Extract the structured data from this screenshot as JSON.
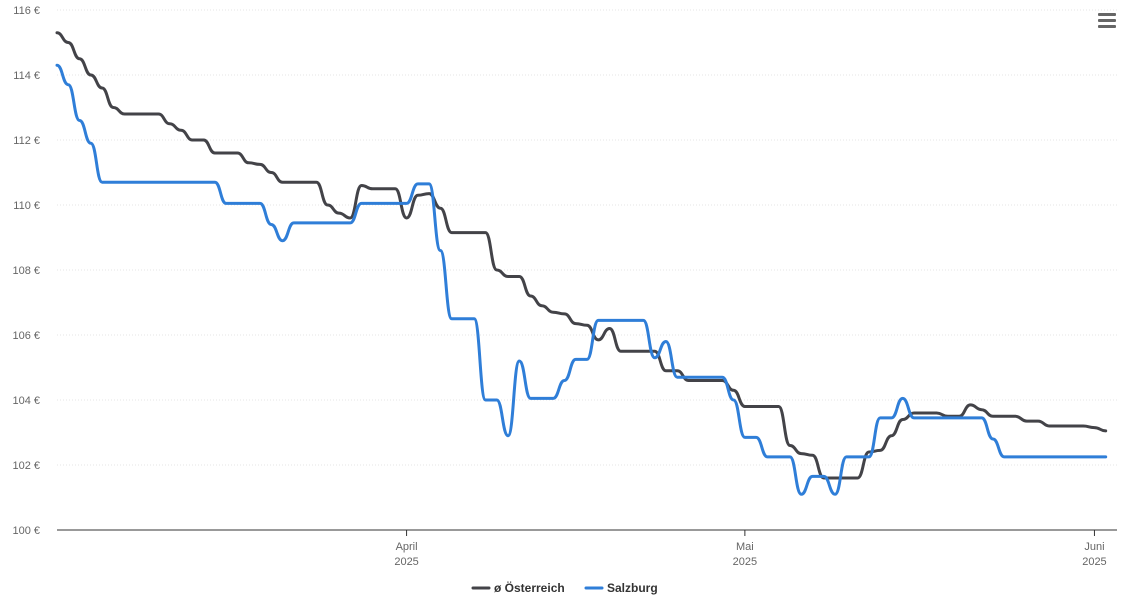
{
  "menu": {
    "icon": "hamburger-menu-icon"
  },
  "colors": {
    "series_oesterreich": "#434348",
    "series_salzburg": "#2f7ed8",
    "grid": "#e6e6e6",
    "axis": "#333333"
  },
  "chart_data": {
    "type": "line",
    "title": "",
    "xlabel": "",
    "ylabel": "",
    "ylim": [
      100,
      116
    ],
    "xlim": [
      "2025-03-01",
      "2025-06-03"
    ],
    "y_ticks": [
      "100 €",
      "102 €",
      "104 €",
      "106 €",
      "108 €",
      "110 €",
      "112 €",
      "114 €",
      "116 €"
    ],
    "x_ticks": [
      {
        "date": "2025-04-01",
        "month": "April",
        "year": "2025"
      },
      {
        "date": "2025-05-01",
        "month": "Mai",
        "year": "2025"
      },
      {
        "date": "2025-06-01",
        "month": "Juni",
        "year": "2025"
      }
    ],
    "grid": true,
    "legend": "bottom-center",
    "series": [
      {
        "name": "ø Österreich",
        "points": [
          [
            "2025-03-01",
            115.3
          ],
          [
            "2025-03-02",
            115.0
          ],
          [
            "2025-03-03",
            114.5
          ],
          [
            "2025-03-04",
            114.0
          ],
          [
            "2025-03-05",
            113.6
          ],
          [
            "2025-03-06",
            113.0
          ],
          [
            "2025-03-07",
            112.8
          ],
          [
            "2025-03-10",
            112.8
          ],
          [
            "2025-03-11",
            112.5
          ],
          [
            "2025-03-12",
            112.3
          ],
          [
            "2025-03-13",
            112.0
          ],
          [
            "2025-03-14",
            112.0
          ],
          [
            "2025-03-15",
            111.6
          ],
          [
            "2025-03-17",
            111.6
          ],
          [
            "2025-03-18",
            111.3
          ],
          [
            "2025-03-19",
            111.25
          ],
          [
            "2025-03-20",
            111.0
          ],
          [
            "2025-03-21",
            110.7
          ],
          [
            "2025-03-24",
            110.7
          ],
          [
            "2025-03-25",
            110.0
          ],
          [
            "2025-03-26",
            109.75
          ],
          [
            "2025-03-27",
            109.6
          ],
          [
            "2025-03-28",
            110.6
          ],
          [
            "2025-03-29",
            110.5
          ],
          [
            "2025-03-31",
            110.5
          ],
          [
            "2025-04-01",
            109.6
          ],
          [
            "2025-04-02",
            110.3
          ],
          [
            "2025-04-03",
            110.35
          ],
          [
            "2025-04-04",
            109.9
          ],
          [
            "2025-04-05",
            109.15
          ],
          [
            "2025-04-08",
            109.15
          ],
          [
            "2025-04-09",
            108.0
          ],
          [
            "2025-04-10",
            107.8
          ],
          [
            "2025-04-11",
            107.8
          ],
          [
            "2025-04-12",
            107.2
          ],
          [
            "2025-04-13",
            106.9
          ],
          [
            "2025-04-14",
            106.7
          ],
          [
            "2025-04-15",
            106.65
          ],
          [
            "2025-04-16",
            106.35
          ],
          [
            "2025-04-17",
            106.3
          ],
          [
            "2025-04-18",
            105.85
          ],
          [
            "2025-04-19",
            106.2
          ],
          [
            "2025-04-20",
            105.5
          ],
          [
            "2025-04-23",
            105.5
          ],
          [
            "2025-04-24",
            104.9
          ],
          [
            "2025-04-25",
            104.9
          ],
          [
            "2025-04-26",
            104.6
          ],
          [
            "2025-04-29",
            104.6
          ],
          [
            "2025-04-30",
            104.3
          ],
          [
            "2025-05-01",
            103.8
          ],
          [
            "2025-05-02",
            103.8
          ],
          [
            "2025-05-04",
            103.8
          ],
          [
            "2025-05-05",
            102.6
          ],
          [
            "2025-05-06",
            102.35
          ],
          [
            "2025-05-07",
            102.3
          ],
          [
            "2025-05-08",
            101.6
          ],
          [
            "2025-05-10",
            101.6
          ],
          [
            "2025-05-11",
            101.6
          ],
          [
            "2025-05-12",
            102.4
          ],
          [
            "2025-05-13",
            102.45
          ],
          [
            "2025-05-14",
            102.9
          ],
          [
            "2025-05-15",
            103.4
          ],
          [
            "2025-05-16",
            103.6
          ],
          [
            "2025-05-18",
            103.6
          ],
          [
            "2025-05-19",
            103.5
          ],
          [
            "2025-05-20",
            103.5
          ],
          [
            "2025-05-21",
            103.85
          ],
          [
            "2025-05-22",
            103.7
          ],
          [
            "2025-05-23",
            103.5
          ],
          [
            "2025-05-25",
            103.5
          ],
          [
            "2025-05-26",
            103.35
          ],
          [
            "2025-05-27",
            103.35
          ],
          [
            "2025-05-28",
            103.2
          ],
          [
            "2025-05-31",
            103.2
          ],
          [
            "2025-06-01",
            103.15
          ],
          [
            "2025-06-02",
            103.05
          ]
        ]
      },
      {
        "name": "Salzburg",
        "points": [
          [
            "2025-03-01",
            114.3
          ],
          [
            "2025-03-02",
            113.7
          ],
          [
            "2025-03-03",
            112.6
          ],
          [
            "2025-03-04",
            111.9
          ],
          [
            "2025-03-05",
            110.7
          ],
          [
            "2025-03-15",
            110.7
          ],
          [
            "2025-03-16",
            110.05
          ],
          [
            "2025-03-19",
            110.05
          ],
          [
            "2025-03-20",
            109.4
          ],
          [
            "2025-03-21",
            108.9
          ],
          [
            "2025-03-22",
            109.45
          ],
          [
            "2025-03-27",
            109.45
          ],
          [
            "2025-03-28",
            110.05
          ],
          [
            "2025-04-01",
            110.05
          ],
          [
            "2025-04-02",
            110.65
          ],
          [
            "2025-04-03",
            110.65
          ],
          [
            "2025-04-04",
            108.6
          ],
          [
            "2025-04-05",
            106.5
          ],
          [
            "2025-04-07",
            106.5
          ],
          [
            "2025-04-08",
            104.0
          ],
          [
            "2025-04-09",
            104.0
          ],
          [
            "2025-04-10",
            102.9
          ],
          [
            "2025-04-11",
            105.2
          ],
          [
            "2025-04-12",
            104.05
          ],
          [
            "2025-04-14",
            104.05
          ],
          [
            "2025-04-15",
            104.6
          ],
          [
            "2025-04-16",
            105.25
          ],
          [
            "2025-04-17",
            105.25
          ],
          [
            "2025-04-18",
            106.45
          ],
          [
            "2025-04-22",
            106.45
          ],
          [
            "2025-04-23",
            105.3
          ],
          [
            "2025-04-24",
            105.8
          ],
          [
            "2025-04-25",
            104.7
          ],
          [
            "2025-04-29",
            104.7
          ],
          [
            "2025-04-30",
            104.0
          ],
          [
            "2025-05-01",
            102.85
          ],
          [
            "2025-05-02",
            102.85
          ],
          [
            "2025-05-03",
            102.25
          ],
          [
            "2025-05-05",
            102.25
          ],
          [
            "2025-05-06",
            101.1
          ],
          [
            "2025-05-07",
            101.65
          ],
          [
            "2025-05-08",
            101.65
          ],
          [
            "2025-05-09",
            101.1
          ],
          [
            "2025-05-10",
            102.25
          ],
          [
            "2025-05-12",
            102.25
          ],
          [
            "2025-05-13",
            103.45
          ],
          [
            "2025-05-14",
            103.45
          ],
          [
            "2025-05-15",
            104.05
          ],
          [
            "2025-05-16",
            103.45
          ],
          [
            "2025-05-22",
            103.45
          ],
          [
            "2025-05-23",
            102.8
          ],
          [
            "2025-05-24",
            102.25
          ],
          [
            "2025-06-02",
            102.25
          ]
        ]
      }
    ]
  }
}
